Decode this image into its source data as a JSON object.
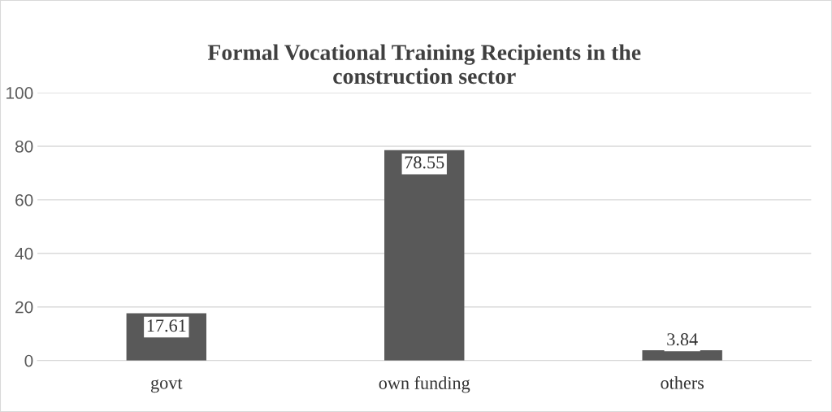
{
  "chart_data": {
    "type": "bar",
    "title": "Formal Vocational Training Recipients in the construction sector",
    "categories": [
      "govt",
      "own funding",
      "others"
    ],
    "values": [
      17.61,
      78.55,
      3.84
    ],
    "color": "#595959",
    "ylim": [
      0,
      100
    ],
    "yticks": [
      0,
      20,
      40,
      60,
      80,
      100
    ],
    "grid": "y",
    "data_labels": true,
    "legend": false
  }
}
